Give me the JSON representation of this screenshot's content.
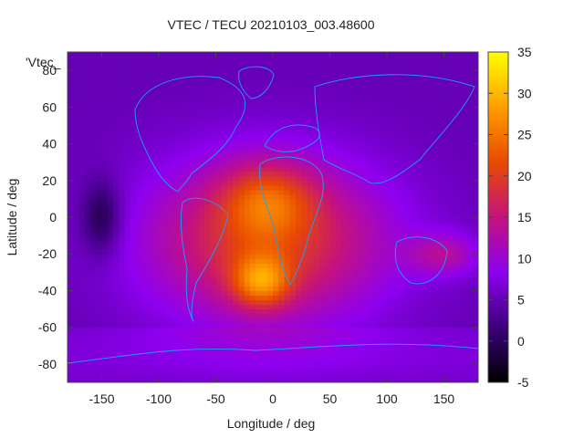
{
  "chart_data": {
    "type": "heatmap",
    "title": "VTEC / TECU 20210103_003.48600",
    "xlabel": "Longitude / deg",
    "ylabel": "Latitude / deg",
    "series_label": "'Vtec_",
    "xlim": [
      -180,
      180
    ],
    "ylim": [
      -90,
      90
    ],
    "x_ticks": [
      -150,
      -100,
      -50,
      0,
      50,
      100,
      150
    ],
    "y_ticks": [
      80,
      60,
      40,
      20,
      0,
      -20,
      -40,
      -60,
      -80
    ],
    "colorbar": {
      "range": [
        -5,
        35
      ],
      "ticks": [
        35,
        30,
        25,
        20,
        15,
        10,
        5,
        0,
        -5
      ],
      "palette": [
        "#000000",
        "#3b007a",
        "#8e00f0",
        "#c4127d",
        "#e84a00",
        "#ff9e00",
        "#ffff00"
      ]
    },
    "features": [
      {
        "name": "equatorial-anomaly-peak",
        "lon": -10,
        "lat": -35,
        "value": 33
      },
      {
        "name": "equatorial-crest",
        "lon": -5,
        "lat": 10,
        "value": 26
      },
      {
        "name": "broad-dayside-band",
        "lon_range": [
          -100,
          90
        ],
        "lat_range": [
          -50,
          25
        ],
        "value": 20
      },
      {
        "name": "night-side-minimum",
        "lon": -150,
        "lat": 0,
        "value": -2
      },
      {
        "name": "polar-background",
        "lat_range": [
          60,
          90
        ],
        "value": 5
      },
      {
        "name": "southern-background",
        "lat_range": [
          -90,
          -60
        ],
        "value": 7
      },
      {
        "name": "pacific-south-band",
        "lon_range": [
          120,
          180
        ],
        "lat_range": [
          -30,
          -10
        ],
        "value": 12
      }
    ]
  }
}
